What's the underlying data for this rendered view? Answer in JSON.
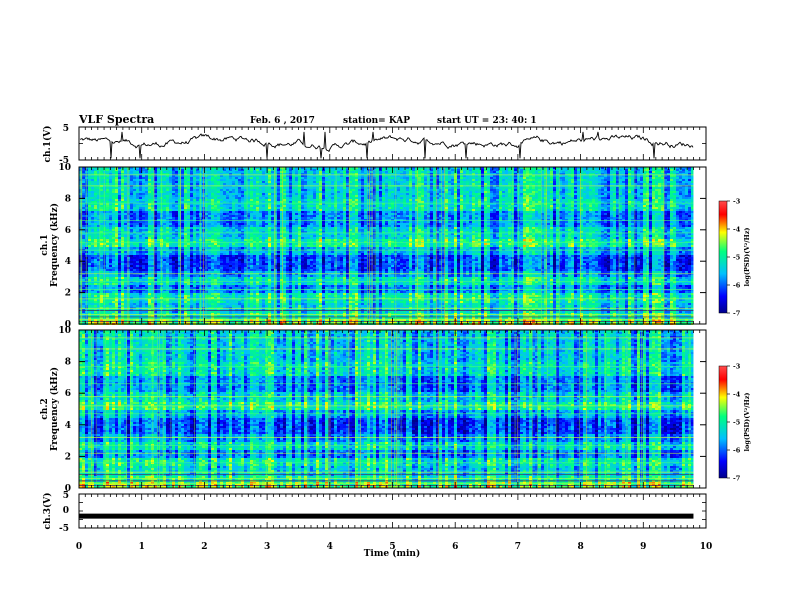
{
  "header": {
    "title": "VLF Spectra",
    "date": "Feb. 6 , 2017",
    "station": "station= KAP",
    "start": "start  UT =   23: 40: 1"
  },
  "chart_data": [
    {
      "type": "line",
      "ylabel": "ch.1(V)",
      "ylim": [
        -5,
        5
      ],
      "y_tick_labels": [
        "5",
        "-5"
      ],
      "xlim": [
        0,
        10
      ],
      "description_values": {
        "baseline": 0.3,
        "range": [
          -3,
          4
        ]
      }
    },
    {
      "type": "heatmap",
      "ylabel": "ch.1\nFrequency (kHz)",
      "ylabel_line1": "ch.1",
      "ylabel_line2": "Frequency (kHz)",
      "ylim": [
        0,
        10
      ],
      "y_tick_labels": [
        "0",
        "2",
        "4",
        "6",
        "8",
        "10"
      ],
      "xlim": [
        0,
        9.8
      ],
      "colorbar": {
        "label": "log(PSD)(V²/Hz)",
        "range": [
          -7,
          -3
        ],
        "tick_labels": [
          "-3",
          "-4",
          "-5",
          "-6",
          "-7"
        ],
        "colors": [
          "#00008b",
          "#0000ff",
          "#00bfff",
          "#00ff7f",
          "#ffff00",
          "#ff0000",
          "#ff4040"
        ]
      }
    },
    {
      "type": "heatmap",
      "ylabel": "ch.2\nFrequency (kHz)",
      "ylabel_line1": "ch.2",
      "ylabel_line2": "Frequency (kHz)",
      "ylim": [
        0,
        10
      ],
      "y_tick_labels": [
        "0",
        "2",
        "4",
        "6",
        "8",
        "10"
      ],
      "xlim": [
        0,
        9.8
      ],
      "colorbar": {
        "label": "log(PSD)(V²/Hz)",
        "range": [
          -7,
          -3
        ],
        "tick_labels": [
          "-3",
          "-4",
          "-5",
          "-6",
          "-7"
        ],
        "colors": [
          "#00008b",
          "#0000ff",
          "#00bfff",
          "#00ff7f",
          "#ffff00",
          "#ff0000",
          "#ff4040"
        ]
      }
    },
    {
      "type": "line",
      "ylabel": "ch.3(V)",
      "ylim": [
        -5,
        5
      ],
      "y_tick_labels": [
        "5",
        "0",
        "-5"
      ],
      "xlim": [
        0,
        10
      ],
      "series": [
        {
          "values_constant": -1.5
        }
      ]
    }
  ],
  "x_axis": {
    "label": "Time (min)",
    "tick_labels": [
      "0",
      "1",
      "2",
      "3",
      "4",
      "5",
      "6",
      "7",
      "8",
      "9",
      "10"
    ],
    "range": [
      0,
      10
    ]
  }
}
